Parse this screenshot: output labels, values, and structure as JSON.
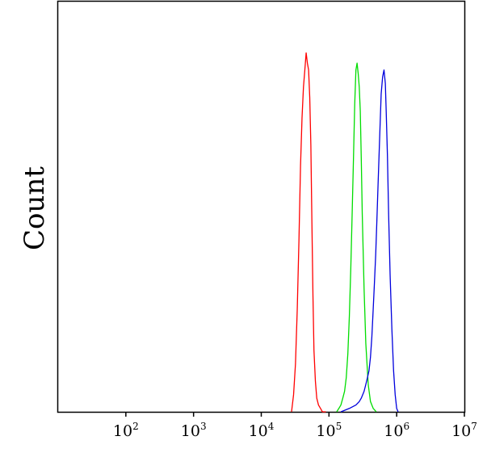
{
  "chart_data": {
    "type": "line",
    "title": "",
    "xlabel": "",
    "ylabel": "Count",
    "x_scale": "log",
    "xlim": [
      10,
      10000000
    ],
    "ylim": [
      0,
      1.2
    ],
    "grid": false,
    "legend": "none",
    "x_ticks": [
      {
        "value": 100,
        "base": "10",
        "exp": "2"
      },
      {
        "value": 1000,
        "base": "10",
        "exp": "3"
      },
      {
        "value": 10000,
        "base": "10",
        "exp": "4"
      },
      {
        "value": 100000,
        "base": "10",
        "exp": "5"
      },
      {
        "value": 1000000,
        "base": "10",
        "exp": "6"
      },
      {
        "value": 10000000,
        "base": "10",
        "exp": "7"
      }
    ],
    "series": [
      {
        "color": "#ff0000",
        "x": [
          28000,
          30000,
          32000,
          34000,
          36000,
          38000,
          40000,
          42000,
          44000,
          46000,
          48000,
          50000,
          52000,
          54000,
          56000,
          58000,
          60000,
          63000,
          66000,
          70000,
          75000,
          80000,
          90000
        ],
        "y": [
          0.0,
          0.05,
          0.14,
          0.3,
          0.5,
          0.72,
          0.86,
          0.95,
          1.0,
          1.05,
          1.02,
          1.0,
          0.92,
          0.78,
          0.55,
          0.34,
          0.18,
          0.09,
          0.04,
          0.02,
          0.01,
          0.0,
          0.0
        ]
      },
      {
        "color": "#00dd00",
        "x": [
          130000,
          140000,
          150000,
          160000,
          170000,
          180000,
          190000,
          200000,
          210000,
          220000,
          230000,
          240000,
          250000,
          260000,
          270000,
          280000,
          290000,
          300000,
          310000,
          330000,
          350000,
          380000,
          410000,
          450000,
          500000
        ],
        "y": [
          0.0,
          0.01,
          0.02,
          0.04,
          0.06,
          0.1,
          0.17,
          0.28,
          0.42,
          0.58,
          0.74,
          0.9,
          1.0,
          1.02,
          0.99,
          0.95,
          0.88,
          0.74,
          0.58,
          0.36,
          0.2,
          0.08,
          0.03,
          0.01,
          0.0
        ]
      },
      {
        "color": "#0000dd",
        "x": [
          150000,
          200000,
          250000,
          280000,
          300000,
          330000,
          350000,
          370000,
          390000,
          410000,
          430000,
          450000,
          470000,
          490000,
          510000,
          530000,
          560000,
          590000,
          620000,
          650000,
          680000,
          700000,
          730000,
          760000,
          800000,
          850000,
          900000,
          950000,
          1000000,
          1050000
        ],
        "y": [
          0.0,
          0.01,
          0.02,
          0.03,
          0.04,
          0.06,
          0.08,
          0.1,
          0.12,
          0.16,
          0.22,
          0.3,
          0.38,
          0.46,
          0.56,
          0.66,
          0.8,
          0.93,
          0.98,
          1.0,
          0.96,
          0.88,
          0.75,
          0.58,
          0.4,
          0.24,
          0.12,
          0.05,
          0.01,
          0.0
        ]
      }
    ]
  }
}
